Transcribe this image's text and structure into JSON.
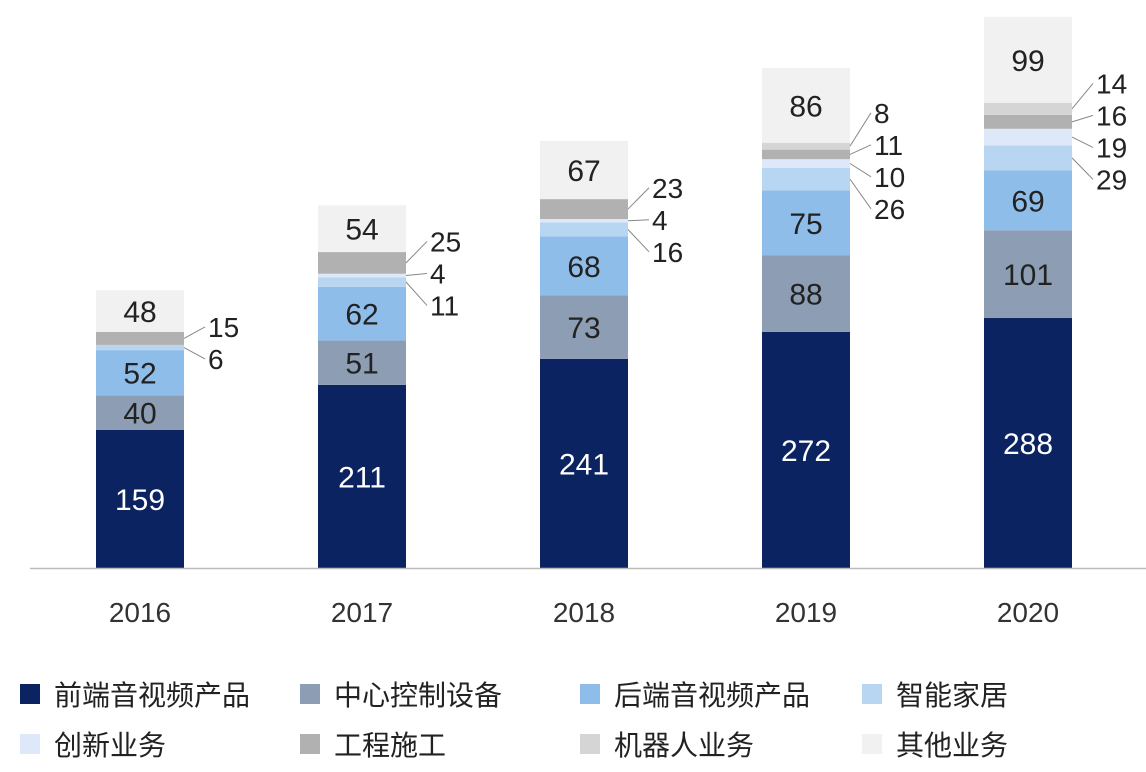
{
  "chart_data": {
    "type": "bar",
    "stacked": true,
    "categories": [
      "2016",
      "2017",
      "2018",
      "2019",
      "2020"
    ],
    "series": [
      {
        "name": "前端音视频产品",
        "color": "#0b2461",
        "values": [
          159,
          211,
          241,
          272,
          288
        ]
      },
      {
        "name": "中心控制设备",
        "color": "#8d9db3",
        "values": [
          40,
          51,
          73,
          88,
          101
        ]
      },
      {
        "name": "后端音视频产品",
        "color": "#8fbde9",
        "values": [
          52,
          62,
          68,
          75,
          69
        ]
      },
      {
        "name": "智能家居",
        "color": "#b8d5f1",
        "values": [
          6,
          11,
          16,
          26,
          29
        ]
      },
      {
        "name": "创新业务",
        "color": "#dde9f8",
        "values": [
          0,
          4,
          4,
          10,
          19
        ]
      },
      {
        "name": "工程施工",
        "color": "#b1b1b1",
        "values": [
          15,
          25,
          23,
          11,
          16
        ]
      },
      {
        "name": "机器人业务",
        "color": "#d5d5d5",
        "values": [
          0,
          0,
          0,
          8,
          14
        ]
      },
      {
        "name": "其他业务",
        "color": "#f1f1f1",
        "values": [
          48,
          54,
          67,
          86,
          99
        ]
      }
    ],
    "ylim": [
      0,
      640
    ],
    "grid": false,
    "legend_position": "bottom"
  }
}
